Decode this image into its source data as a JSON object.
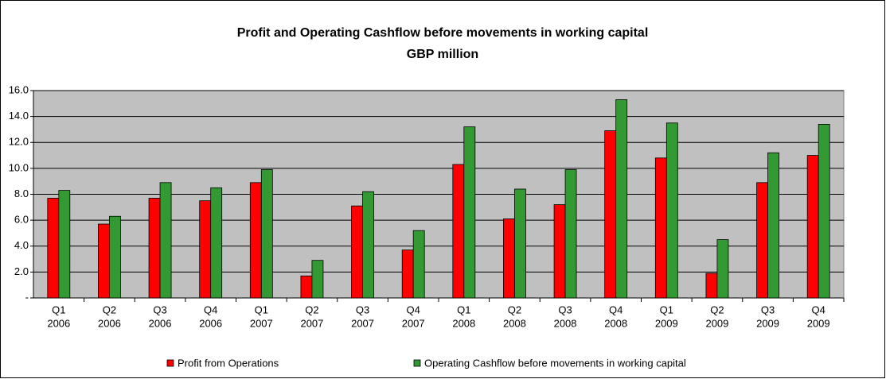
{
  "chart_data": {
    "type": "bar",
    "title": "Profit and Operating Cashflow before movements in working capital",
    "subtitle": "GBP million",
    "categories": [
      [
        "Q1",
        "2006"
      ],
      [
        "Q2",
        "2006"
      ],
      [
        "Q3",
        "2006"
      ],
      [
        "Q4",
        "2006"
      ],
      [
        "Q1",
        "2007"
      ],
      [
        "Q2",
        "2007"
      ],
      [
        "Q3",
        "2007"
      ],
      [
        "Q4",
        "2007"
      ],
      [
        "Q1",
        "2008"
      ],
      [
        "Q2",
        "2008"
      ],
      [
        "Q3",
        "2008"
      ],
      [
        "Q4",
        "2008"
      ],
      [
        "Q1",
        "2009"
      ],
      [
        "Q2",
        "2009"
      ],
      [
        "Q3",
        "2009"
      ],
      [
        "Q4",
        "2009"
      ]
    ],
    "series": [
      {
        "name": "Profit from Operations",
        "color": "#ff0000",
        "values": [
          7.7,
          5.7,
          7.7,
          7.5,
          8.9,
          1.7,
          7.1,
          3.7,
          10.3,
          6.1,
          7.2,
          12.9,
          10.8,
          1.9,
          8.9,
          11.0
        ]
      },
      {
        "name": "Operating Cashflow before movements in working capital",
        "color": "#339933",
        "values": [
          8.3,
          6.3,
          8.9,
          8.5,
          9.9,
          2.9,
          8.2,
          5.2,
          13.2,
          8.4,
          9.9,
          15.3,
          13.5,
          4.5,
          11.2,
          13.4
        ]
      }
    ],
    "ylim": [
      0,
      16
    ],
    "yticks": [
      {
        "value": 0,
        "label": "-"
      },
      {
        "value": 2,
        "label": "2.0"
      },
      {
        "value": 4,
        "label": "4.0"
      },
      {
        "value": 6,
        "label": "6.0"
      },
      {
        "value": 8,
        "label": "8.0"
      },
      {
        "value": 10,
        "label": "10.0"
      },
      {
        "value": 12,
        "label": "12.0"
      },
      {
        "value": 14,
        "label": "14.0"
      },
      {
        "value": 16,
        "label": "16.0"
      }
    ],
    "grid": true,
    "plot_background": "#c0c0c0",
    "legend": "bottom"
  }
}
